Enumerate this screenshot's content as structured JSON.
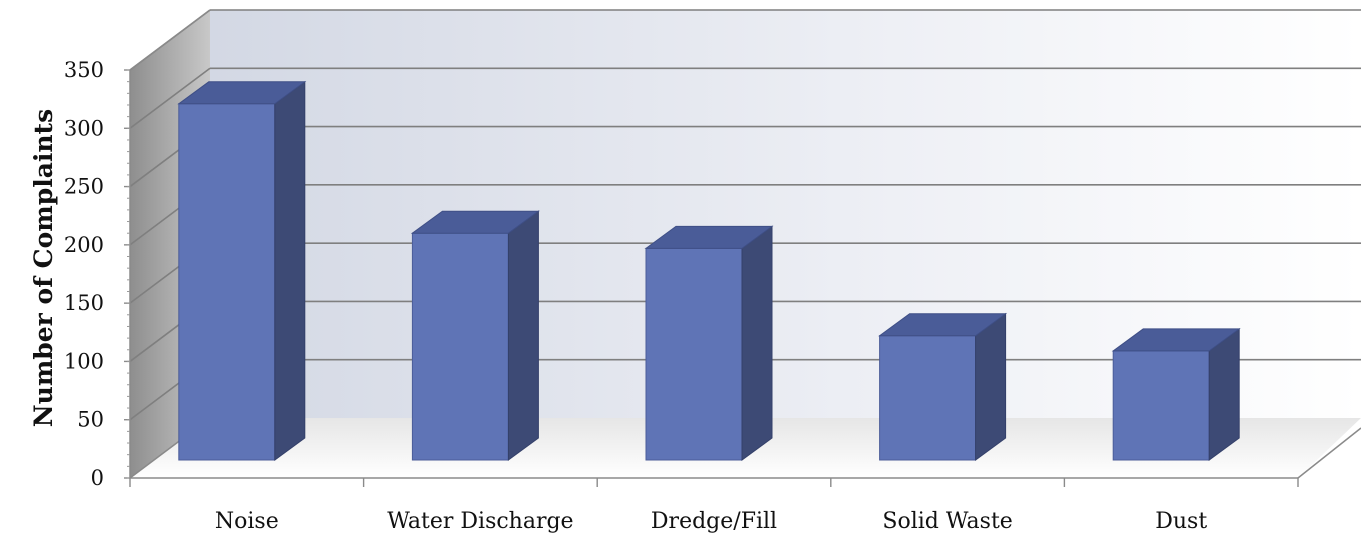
{
  "chart_data": {
    "type": "bar",
    "style": "3d-column",
    "categories": [
      "Noise",
      "Water Discharge",
      "Dredge/Fill",
      "Solid Waste",
      "Dust"
    ],
    "series": [
      {
        "values": [
          321,
          210,
          197,
          122,
          109
        ]
      }
    ],
    "title": "",
    "xlabel": "",
    "ylabel": "Number of Complaints",
    "ylim": [
      0,
      350
    ],
    "yticks": [
      0,
      50,
      100,
      150,
      200,
      250,
      300,
      350
    ],
    "grid": true,
    "legend": "none",
    "colors": {
      "bar_front": "#5f74b6",
      "bar_side": "#3d4a75",
      "bar_top": "#4a5c98",
      "gridline": "#7f7f7f",
      "back_wall": "#e4e7ef",
      "side_wall": "#9a9a9a",
      "floor": "#f4f4f4"
    }
  }
}
